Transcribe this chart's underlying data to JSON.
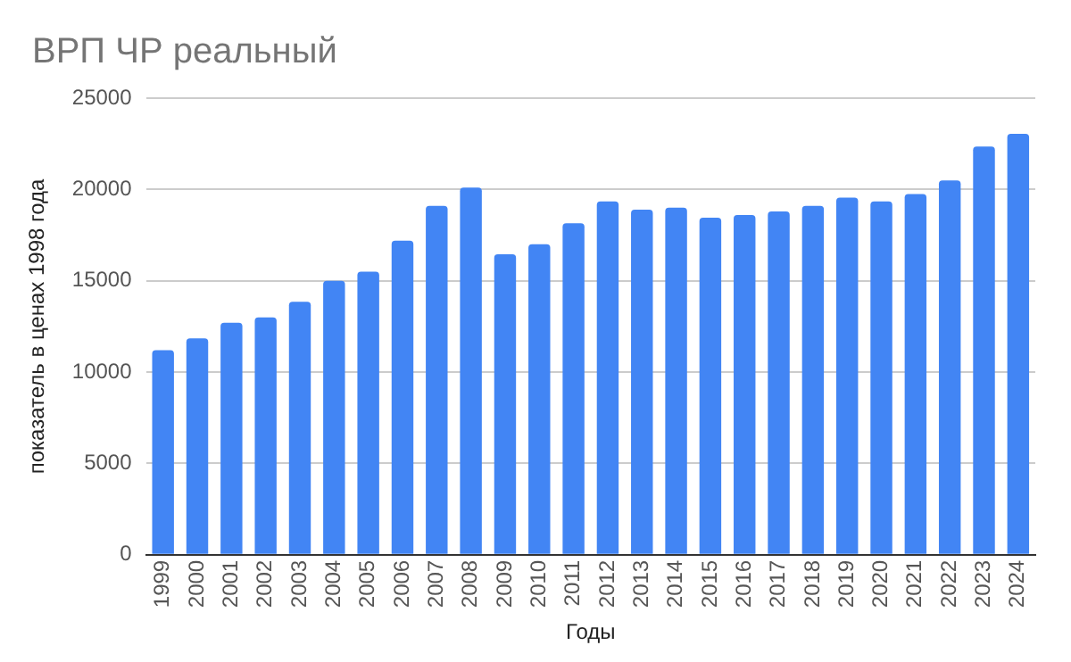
{
  "chart_data": {
    "type": "bar",
    "title": "ВРП ЧР реальный",
    "xlabel": "Годы",
    "ylabel": "показатель в ценах 1998 года",
    "categories": [
      "1999",
      "2000",
      "2001",
      "2002",
      "2003",
      "2004",
      "2005",
      "2006",
      "2007",
      "2008",
      "2009",
      "2010",
      "2011",
      "2012",
      "2013",
      "2014",
      "2015",
      "2016",
      "2017",
      "2018",
      "2019",
      "2020",
      "2021",
      "2022",
      "2023",
      "2024"
    ],
    "values": [
      11200,
      11850,
      12700,
      13000,
      13850,
      15000,
      15500,
      17200,
      19100,
      20100,
      16450,
      17000,
      18150,
      19350,
      18900,
      19000,
      18450,
      18600,
      18800,
      19100,
      19550,
      19350,
      19750,
      20500,
      22350,
      23050
    ],
    "color": "#4285f4",
    "ylim": [
      0,
      25000
    ],
    "yticks": [
      0,
      5000,
      10000,
      15000,
      20000,
      25000
    ],
    "grid": "y"
  }
}
